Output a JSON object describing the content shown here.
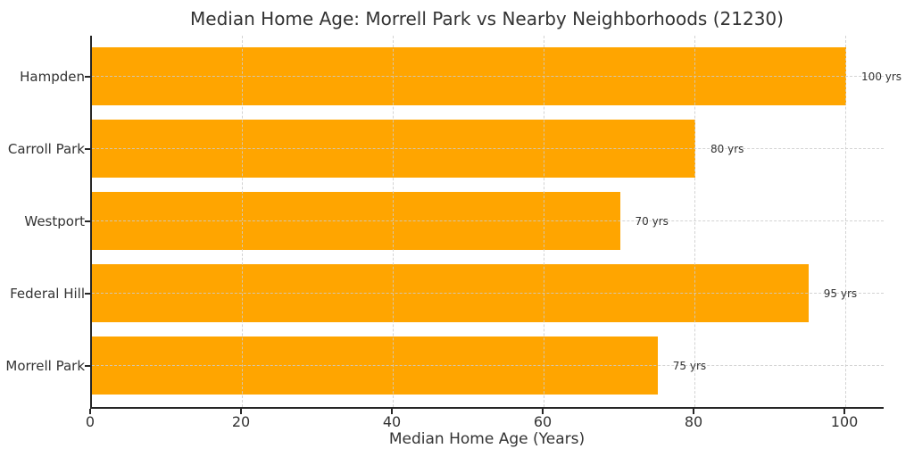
{
  "chart_data": {
    "type": "bar",
    "orientation": "horizontal",
    "title": "Median Home Age: Morrell Park vs Nearby Neighborhoods (21230)",
    "xlabel": "Median Home Age (Years)",
    "ylabel": "",
    "categories": [
      "Hampden",
      "Carroll Park",
      "Westport",
      "Federal Hill",
      "Morrell Park"
    ],
    "values": [
      100,
      80,
      70,
      95,
      75
    ],
    "value_labels": [
      "100 yrs",
      "80 yrs",
      "70 yrs",
      "95 yrs",
      "75 yrs"
    ],
    "xticks": [
      0,
      20,
      40,
      60,
      80,
      100
    ],
    "xlim": [
      0,
      105.2
    ],
    "grid": true,
    "grid_style": "dashed",
    "legend": "none",
    "colors": {
      "bar": "#FFA500",
      "text": "#333333",
      "grid": "#cccccc",
      "axis": "#262626",
      "background": "#ffffff"
    }
  }
}
